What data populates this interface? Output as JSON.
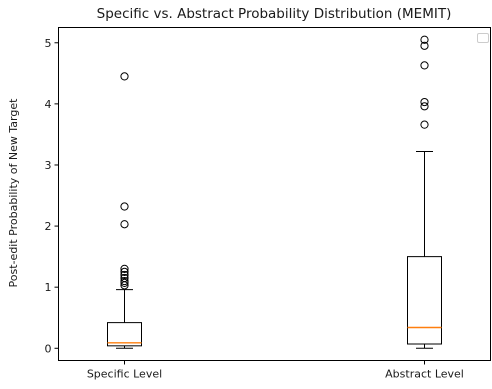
{
  "chart_data": {
    "type": "box",
    "title": "Specific vs. Abstract Probability Distribution (MEMIT)",
    "xlabel": "",
    "ylabel": "Post-edit Probability of New Target",
    "ylim": [
      -0.2,
      5.25
    ],
    "yticks": [
      0,
      1,
      2,
      3,
      4,
      5
    ],
    "grid": false,
    "legend": {
      "placement": "upper-right",
      "entries": []
    },
    "categories": [
      "Specific Level",
      "Abstract Level"
    ],
    "boxes": [
      {
        "category": "Specific Level",
        "whisker_low": 0.0,
        "q1": 0.04,
        "median": 0.09,
        "q3": 0.42,
        "whisker_high": 0.96,
        "fliers": [
          1.03,
          1.07,
          1.1,
          1.15,
          1.2,
          1.25,
          1.3,
          2.03,
          2.32,
          4.45
        ]
      },
      {
        "category": "Abstract Level",
        "whisker_low": 0.0,
        "q1": 0.07,
        "median": 0.34,
        "q3": 1.5,
        "whisker_high": 3.22,
        "fliers": [
          3.66,
          3.96,
          4.03,
          4.63,
          4.95,
          5.05
        ]
      }
    ]
  }
}
